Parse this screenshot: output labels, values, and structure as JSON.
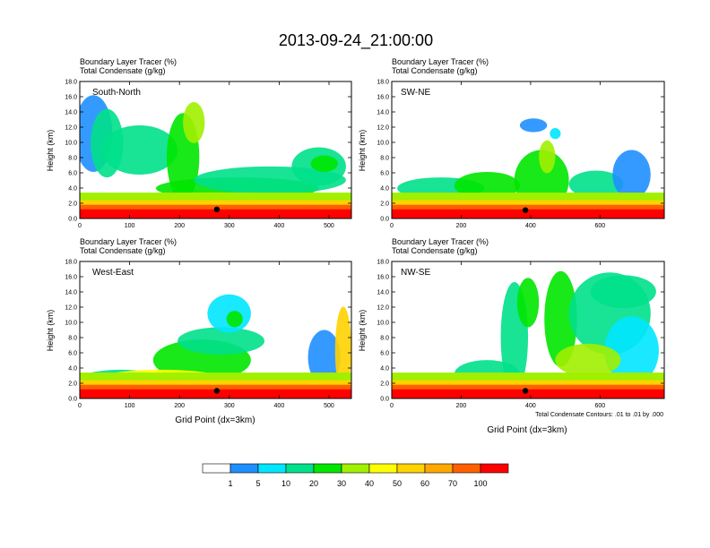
{
  "page_title": "2013-09-24_21:00:00",
  "palette": [
    "#ffffff",
    "#1f8fff",
    "#00e6ff",
    "#00e08a",
    "#00e600",
    "#a0f000",
    "#ffff00",
    "#ffd200",
    "#ffa800",
    "#ff6000",
    "#ff0000"
  ],
  "chart_data": [
    {
      "type": "heatmap",
      "title": "Boundary Layer Tracer (%)",
      "subtitle": "Total Condensate (g/kg)",
      "title_line1": "Boundary Layer Tracer   (%)",
      "title_line2": "Total Condensate   (g/kg)",
      "label": "South-North",
      "ylabel": "Height (km)",
      "xlabel": "",
      "xlim": [
        0,
        545
      ],
      "ylim": [
        0,
        18
      ],
      "xticks": [
        "0",
        "100",
        "200",
        "300",
        "400",
        "500"
      ],
      "yticks": [
        "0.0",
        "2.0",
        "4.0",
        "6.0",
        "8.0",
        "10.0",
        "12.0",
        "14.0",
        "16.0",
        "18.0"
      ],
      "marker": [
        275,
        1.2
      ]
    },
    {
      "type": "heatmap",
      "title": "Boundary Layer Tracer (%)",
      "subtitle": "Total Condensate (g/kg)",
      "title_line1": "Boundary Layer Tracer   (%)",
      "title_line2": "Total Condensate   (g/kg)",
      "label": "SW-NE",
      "ylabel": "Height (km)",
      "xlabel": "",
      "xlim": [
        0,
        785
      ],
      "ylim": [
        0,
        18
      ],
      "xticks": [
        "0",
        "200",
        "400",
        "600"
      ],
      "yticks": [
        "0.0",
        "2.0",
        "4.0",
        "6.0",
        "8.0",
        "10.0",
        "12.0",
        "14.0",
        "16.0",
        "18.0"
      ],
      "marker": [
        385,
        1.1
      ]
    },
    {
      "type": "heatmap",
      "title": "Boundary Layer Tracer (%)",
      "subtitle": "Total Condensate (g/kg)",
      "title_line1": "Boundary Layer Tracer   (%)",
      "title_line2": "Total Condensate   (g/kg)",
      "label": "West-East",
      "ylabel": "Height (km)",
      "xlabel": "Grid Point (dx=3km)",
      "xlim": [
        0,
        545
      ],
      "ylim": [
        0,
        18
      ],
      "xticks": [
        "0",
        "100",
        "200",
        "300",
        "400",
        "500"
      ],
      "yticks": [
        "0.0",
        "2.0",
        "4.0",
        "6.0",
        "8.0",
        "10.0",
        "12.0",
        "14.0",
        "16.0",
        "18.0"
      ],
      "marker": [
        275,
        1.0
      ]
    },
    {
      "type": "heatmap",
      "title": "Boundary Layer Tracer (%)",
      "subtitle": "Total Condensate (g/kg)",
      "title_line1": "Boundary Layer Tracer   (%)",
      "title_line2": "Total Condensate   (g/kg)",
      "label": "NW-SE",
      "ylabel": "Height (km)",
      "xlabel": "Grid Point (dx=3km)",
      "xlim": [
        0,
        785
      ],
      "ylim": [
        0,
        18
      ],
      "xticks": [
        "0",
        "200",
        "400",
        "600"
      ],
      "yticks": [
        "0.0",
        "2.0",
        "4.0",
        "6.0",
        "8.0",
        "10.0",
        "12.0",
        "14.0",
        "16.0",
        "18.0"
      ],
      "marker": [
        385,
        1.0
      ],
      "contour_note": "Total Condensate Contours: .01 to .01 by .000"
    }
  ],
  "colorbar": {
    "labels": [
      "1",
      "5",
      "10",
      "20",
      "30",
      "40",
      "50",
      "60",
      "70",
      "100"
    ]
  }
}
